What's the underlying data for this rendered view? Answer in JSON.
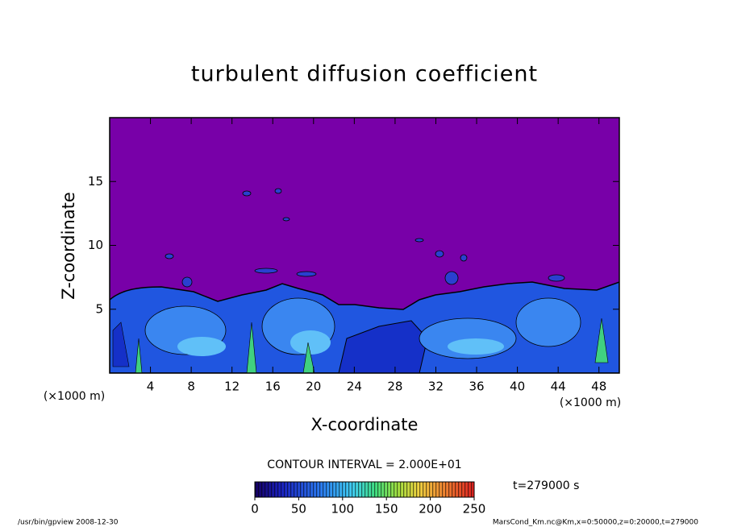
{
  "chart_data": {
    "type": "contour",
    "title": "turbulent diffusion coefficient",
    "x_label": "X-coordinate",
    "y_label": "Z-coordinate",
    "x_unit": "(×1000 m)",
    "y_unit": "(×1000 m)",
    "xlim": [
      0,
      50
    ],
    "xticks": [
      4,
      8,
      12,
      16,
      20,
      24,
      28,
      32,
      36,
      40,
      44,
      48
    ],
    "ylim": [
      0,
      20
    ],
    "yticks": [
      5,
      10,
      15
    ],
    "contour_interval": "CONTOUR INTERVAL = 2.000E+01",
    "colorbar": {
      "lim": [
        0,
        250
      ],
      "ticks": [
        0,
        50,
        100,
        150,
        200,
        250
      ]
    },
    "time_label": "t=279000 s",
    "footer_left": "/usr/bin/gpview   2008-12-30",
    "footer_right": "MarsCond_Km.nc@Km,x=0:50000,z=0:20000,t=279000"
  }
}
